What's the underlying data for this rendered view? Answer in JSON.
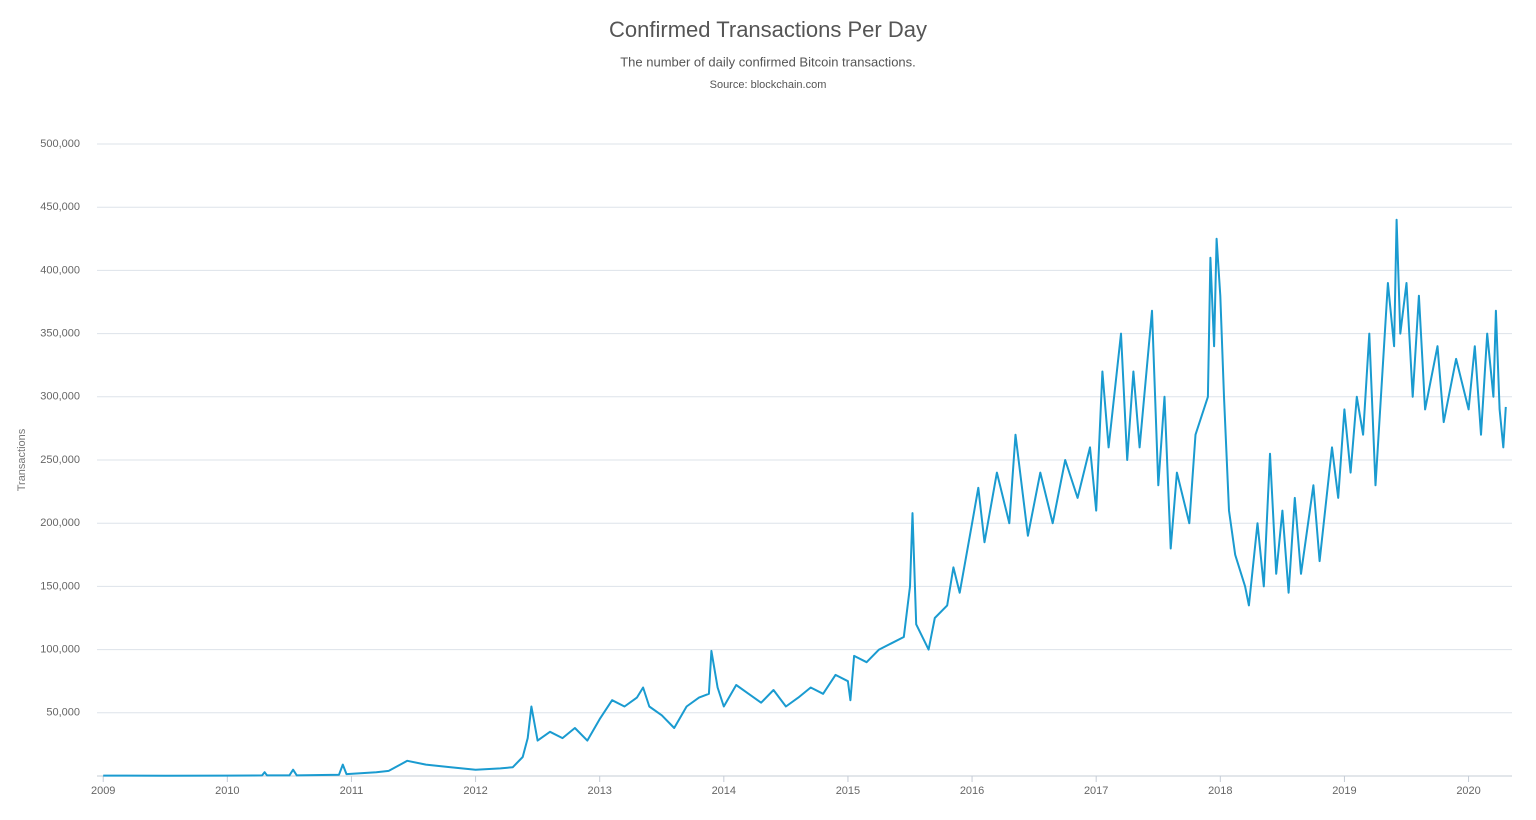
{
  "chart_data": {
    "type": "line",
    "title": "Confirmed Transactions Per Day",
    "subtitle": "The number of daily confirmed Bitcoin transactions.",
    "source": "Source: blockchain.com",
    "y_label": "Transactions",
    "color": "#1a9bd0",
    "grid": true,
    "xlim": [
      2008.95,
      2020.35
    ],
    "xticks": [
      2009,
      2010,
      2011,
      2012,
      2013,
      2014,
      2015,
      2016,
      2017,
      2018,
      2019,
      2020
    ],
    "ylim": [
      0,
      500000
    ],
    "yticks": [
      {
        "value": 50000,
        "label": "50,000"
      },
      {
        "value": 100000,
        "label": "100,000"
      },
      {
        "value": 150000,
        "label": "150,000"
      },
      {
        "value": 200000,
        "label": "200,000"
      },
      {
        "value": 250000,
        "label": "250,000"
      },
      {
        "value": 300000,
        "label": "300,000"
      },
      {
        "value": 350000,
        "label": "350,000"
      },
      {
        "value": 400000,
        "label": "400,000"
      },
      {
        "value": 450000,
        "label": "450,000"
      },
      {
        "value": 500000,
        "label": "500,000"
      }
    ],
    "x": [
      2009.0,
      2009.5,
      2010.0,
      2010.28,
      2010.3,
      2010.32,
      2010.5,
      2010.53,
      2010.56,
      2010.9,
      2010.93,
      2010.96,
      2011.2,
      2011.3,
      2011.45,
      2011.6,
      2011.8,
      2012.0,
      2012.2,
      2012.3,
      2012.38,
      2012.42,
      2012.45,
      2012.5,
      2012.6,
      2012.7,
      2012.8,
      2012.9,
      2013.0,
      2013.1,
      2013.2,
      2013.3,
      2013.35,
      2013.4,
      2013.5,
      2013.6,
      2013.7,
      2013.8,
      2013.88,
      2013.9,
      2013.95,
      2014.0,
      2014.1,
      2014.2,
      2014.3,
      2014.4,
      2014.5,
      2014.6,
      2014.7,
      2014.8,
      2014.9,
      2015.0,
      2015.02,
      2015.05,
      2015.15,
      2015.25,
      2015.35,
      2015.45,
      2015.5,
      2015.52,
      2015.55,
      2015.65,
      2015.7,
      2015.8,
      2015.85,
      2015.9,
      2016.0,
      2016.05,
      2016.1,
      2016.2,
      2016.3,
      2016.35,
      2016.45,
      2016.55,
      2016.65,
      2016.75,
      2016.85,
      2016.95,
      2017.0,
      2017.05,
      2017.1,
      2017.2,
      2017.25,
      2017.3,
      2017.35,
      2017.45,
      2017.5,
      2017.55,
      2017.6,
      2017.65,
      2017.75,
      2017.8,
      2017.9,
      2017.92,
      2017.95,
      2017.97,
      2018.0,
      2018.03,
      2018.07,
      2018.12,
      2018.2,
      2018.23,
      2018.3,
      2018.35,
      2018.4,
      2018.45,
      2018.5,
      2018.55,
      2018.6,
      2018.65,
      2018.75,
      2018.8,
      2018.9,
      2018.95,
      2019.0,
      2019.05,
      2019.1,
      2019.15,
      2019.2,
      2019.25,
      2019.3,
      2019.35,
      2019.4,
      2019.42,
      2019.45,
      2019.5,
      2019.55,
      2019.6,
      2019.65,
      2019.75,
      2019.8,
      2019.9,
      2020.0,
      2020.05,
      2020.1,
      2020.15,
      2020.2,
      2020.22,
      2020.25,
      2020.28,
      2020.3
    ],
    "values": [
      300,
      200,
      300,
      500,
      3000,
      500,
      500,
      5000,
      500,
      1000,
      9000,
      1500,
      3000,
      4000,
      12000,
      9000,
      7000,
      5000,
      6000,
      7000,
      15000,
      30000,
      55000,
      28000,
      35000,
      30000,
      38000,
      28000,
      45000,
      60000,
      55000,
      62000,
      70000,
      55000,
      48000,
      38000,
      55000,
      62000,
      65000,
      99000,
      70000,
      55000,
      72000,
      65000,
      58000,
      68000,
      55000,
      62000,
      70000,
      65000,
      80000,
      75000,
      60000,
      95000,
      90000,
      100000,
      105000,
      110000,
      150000,
      208000,
      120000,
      100000,
      125000,
      135000,
      165000,
      145000,
      200000,
      228000,
      185000,
      240000,
      200000,
      270000,
      190000,
      240000,
      200000,
      250000,
      220000,
      260000,
      210000,
      320000,
      260000,
      350000,
      250000,
      320000,
      260000,
      368000,
      230000,
      300000,
      180000,
      240000,
      200000,
      270000,
      300000,
      410000,
      340000,
      425000,
      380000,
      300000,
      210000,
      175000,
      150000,
      135000,
      200000,
      150000,
      255000,
      160000,
      210000,
      145000,
      220000,
      160000,
      230000,
      170000,
      260000,
      220000,
      290000,
      240000,
      300000,
      270000,
      350000,
      230000,
      310000,
      390000,
      340000,
      440000,
      350000,
      390000,
      300000,
      380000,
      290000,
      340000,
      280000,
      330000,
      290000,
      340000,
      270000,
      350000,
      300000,
      368000,
      290000,
      260000,
      292000
    ]
  }
}
